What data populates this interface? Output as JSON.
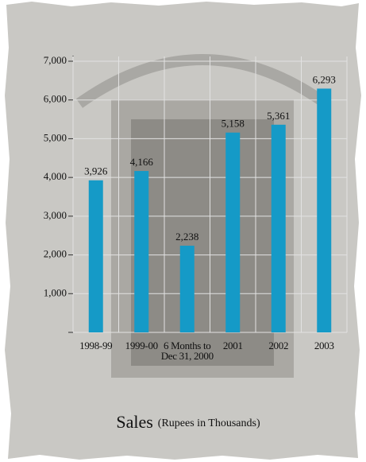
{
  "chart_data": {
    "type": "bar",
    "title": "Sales",
    "subtitle": "(Rupees in Thousands)",
    "categories": [
      "1998-99",
      "1999-00",
      "6 Months to Dec 31, 2000",
      "2001",
      "2002",
      "2003"
    ],
    "values": [
      3926,
      4166,
      2238,
      5158,
      5361,
      6293
    ],
    "value_labels": [
      "3,926",
      "4,166",
      "2,238",
      "5,158",
      "5,361",
      "6,293"
    ],
    "color": "#159ac7",
    "ylim": [
      0,
      7000
    ],
    "yticks": [
      0,
      {
        "value": 1000,
        "label": "1,000"
      },
      {
        "value": 2000,
        "label": "2,000"
      },
      {
        "value": 3000,
        "label": "3,000"
      },
      {
        "value": 4000,
        "label": "4,000"
      },
      {
        "value": 5000,
        "label": "5,000"
      },
      {
        "value": 6000,
        "label": "6,000"
      },
      {
        "value": 7000,
        "label": "7,000"
      }
    ],
    "grid": true
  }
}
